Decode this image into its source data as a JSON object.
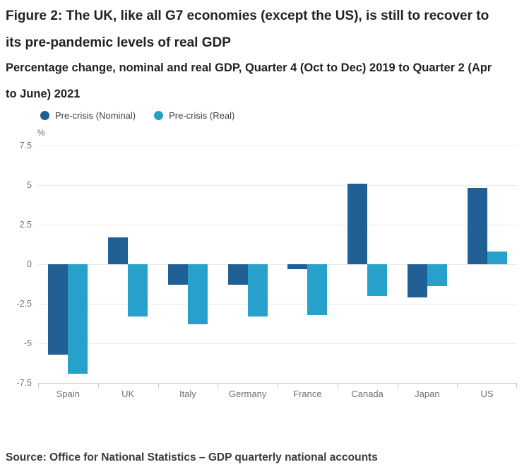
{
  "header": {
    "title": "Figure 2: The UK, like all G7 economies (except the US), is still to recover to its pre-pandemic levels of real GDP",
    "subtitle": "Percentage change, nominal and real GDP, Quarter 4 (Oct to Dec) 2019 to Quarter 2 (Apr to June) 2021"
  },
  "chart_data": {
    "type": "bar",
    "title": "Figure 2: The UK, like all G7 economies (except the US), is still to recover to its pre-pandemic levels of real GDP",
    "subtitle": "Percentage change, nominal and real GDP, Quarter 4 (Oct to Dec) 2019 to Quarter 2 (Apr to June) 2021",
    "ylabel": "%",
    "xlabel": "",
    "categories": [
      "Spain",
      "UK",
      "Italy",
      "Germany",
      "France",
      "Canada",
      "Japan",
      "US"
    ],
    "series": [
      {
        "name": "Pre-crisis (Nominal)",
        "color": "#206095",
        "values": [
          -5.7,
          1.7,
          -1.3,
          -1.3,
          -0.3,
          5.1,
          -2.1,
          4.8
        ]
      },
      {
        "name": "Pre-crisis (Real)",
        "color": "#27a0cc",
        "values": [
          -6.9,
          -3.3,
          -3.8,
          -3.3,
          -3.2,
          -2.0,
          -1.4,
          0.8
        ]
      }
    ],
    "ylim": [
      -7.5,
      7.5
    ],
    "yticks": [
      7.5,
      5,
      2.5,
      0,
      -2.5,
      -5,
      -7.5
    ],
    "grid": true,
    "legend_position": "top"
  },
  "footer": {
    "source": "Source: Office for National Statistics – GDP quarterly national accounts"
  }
}
